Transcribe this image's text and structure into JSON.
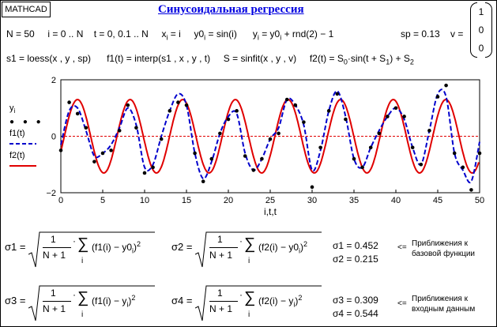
{
  "app": {
    "badge": "MATHCAD",
    "title": "Синусоидальная регрессия"
  },
  "definitions": {
    "line1": [
      "N = 50",
      "i = 0 .. N",
      "t = 0, 0.1 .. N",
      "x",
      "i",
      " = i",
      "y0",
      "i",
      " = sin(i)",
      "y",
      "i",
      " = y0",
      "i",
      " + rnd(2) − 1",
      "sp = 0.13",
      "v ="
    ],
    "vector_v": [
      "1",
      "0",
      "0"
    ],
    "line2": [
      "s1 = loess(x , y , sp)",
      "f1(t) = interp(s1 , x , y , t)",
      "S = sinfit(x , y , v)",
      "f2(t) = S",
      "0",
      "·sin(t + S",
      "1",
      ") + S",
      "2"
    ]
  },
  "legend": {
    "yi": "y",
    "yi_sub": "i",
    "f1": "f1(t)",
    "f2": "f2(t)"
  },
  "colors": {
    "f1": "#0000cc",
    "f2": "#e00000",
    "points": "#000000",
    "zero_line": "#e00000"
  },
  "chart_data": {
    "type": "line",
    "xlabel": "i,t,t",
    "xlim": [
      0,
      50
    ],
    "ylim": [
      -2,
      2
    ],
    "x_ticks": [
      "0",
      "5",
      "10",
      "15",
      "20",
      "25",
      "30",
      "35",
      "40",
      "45",
      "50"
    ],
    "y_ticks": [
      "2",
      "0",
      "−2"
    ],
    "series": [
      {
        "name": "y_i",
        "style": "points",
        "x": [
          0,
          1,
          2,
          3,
          4,
          5,
          6,
          7,
          8,
          9,
          10,
          11,
          12,
          13,
          14,
          15,
          16,
          17,
          18,
          19,
          20,
          21,
          22,
          23,
          24,
          25,
          26,
          27,
          28,
          29,
          30,
          31,
          32,
          33,
          34,
          35,
          36,
          37,
          38,
          39,
          40,
          41,
          42,
          43,
          44,
          45,
          46,
          47,
          48,
          49,
          50
        ],
        "y": [
          -0.5,
          1.2,
          0.8,
          0.3,
          -0.9,
          -0.6,
          -0.5,
          0.2,
          1.1,
          0.3,
          -1.3,
          -1.1,
          -0.1,
          0.9,
          1.2,
          1.1,
          -0.6,
          -1.6,
          -0.8,
          0.1,
          0.6,
          0.9,
          -0.7,
          -1.2,
          -0.8,
          -0.1,
          0.1,
          1.3,
          1.1,
          0.5,
          -1.8,
          -0.4,
          0.9,
          1.5,
          0.6,
          -0.8,
          -1.1,
          -0.4,
          0.1,
          0.7,
          1.0,
          0.7,
          -0.4,
          -1.0,
          0.2,
          1.4,
          1.8,
          -0.6,
          -1.1,
          -1.9,
          -0.6
        ]
      },
      {
        "name": "f1(t)",
        "style": "dashed",
        "x": [
          0,
          1,
          2,
          3,
          4,
          5,
          6,
          7,
          8,
          9,
          10,
          11,
          12,
          13,
          14,
          15,
          16,
          17,
          18,
          19,
          20,
          21,
          22,
          23,
          24,
          25,
          26,
          27,
          28,
          29,
          30,
          31,
          32,
          33,
          34,
          35,
          36,
          37,
          38,
          39,
          40,
          41,
          42,
          43,
          44,
          45,
          46,
          47,
          48,
          49,
          50
        ],
        "y": [
          -0.3,
          0.9,
          1.0,
          0.2,
          -0.7,
          -0.6,
          -0.3,
          0.3,
          1.0,
          0.4,
          -1.1,
          -1.0,
          0.0,
          0.9,
          1.5,
          1.1,
          -0.6,
          -1.5,
          -0.9,
          0.1,
          0.7,
          0.8,
          -0.6,
          -1.2,
          -0.8,
          -0.1,
          0.3,
          1.3,
          1.1,
          0.4,
          -1.2,
          -0.5,
          0.9,
          1.6,
          0.7,
          -0.8,
          -1.1,
          -0.4,
          0.2,
          0.7,
          1.0,
          0.6,
          -0.4,
          -1.0,
          0.2,
          1.5,
          1.4,
          -0.6,
          -1.2,
          -1.6,
          -0.2
        ]
      },
      {
        "name": "f2(t)",
        "style": "solid",
        "function": "S0*sin(t+S1)+S2",
        "params": {
          "S0": 1.3,
          "S1": -0.42,
          "S2": 0.0
        }
      }
    ]
  },
  "results": {
    "s1_lhs": "σ1 =",
    "s2_lhs": "σ2 =",
    "s3_lhs": "σ3 =",
    "s4_lhs": "σ4 =",
    "s1_val": "σ1 = 0.452",
    "s2_val": "σ2 = 0.215",
    "s3_val": "σ3 = 0.309",
    "s4_val": "σ4 = 0.544",
    "arrow": "<=",
    "note1": [
      "Приближения к",
      "базовой функции"
    ],
    "note2": [
      "Приближения к",
      "входным данным"
    ]
  },
  "formula_parts": {
    "one": "1",
    "n1": "N + 1",
    "sum": "∑",
    "idx": "i",
    "sq": "2",
    "f1y0": "(f1(i) − y0",
    "f2y0": "(f2(i) − y0",
    "f1y": "(f1(i) − y",
    "f2y": "(f2(i) − y",
    "sub_i": "i",
    "close": ")"
  }
}
